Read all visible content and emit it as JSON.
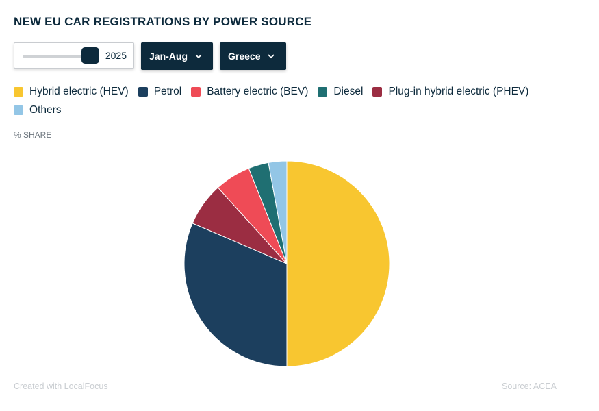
{
  "header": {
    "title": "NEW EU CAR REGISTRATIONS BY POWER SOURCE"
  },
  "controls": {
    "year": "2025",
    "year_slider_fraction": 1.0,
    "period": "Jan-Aug",
    "country": "Greece"
  },
  "legend": [
    {
      "label": "Hybrid electric (HEV)",
      "color": "#f8c630"
    },
    {
      "label": "Petrol",
      "color": "#1c3f5e"
    },
    {
      "label": "Battery electric (BEV)",
      "color": "#ef4b56"
    },
    {
      "label": "Diesel",
      "color": "#1f6f72"
    },
    {
      "label": "Plug-in hybrid electric (PHEV)",
      "color": "#9b2d42"
    },
    {
      "label": "Others",
      "color": "#93c6e6"
    }
  ],
  "axis_label": "% SHARE",
  "chart_data": {
    "type": "pie",
    "title": "NEW EU CAR REGISTRATIONS BY POWER SOURCE",
    "unit": "% SHARE",
    "slices": [
      {
        "label": "Hybrid electric (HEV)",
        "value": 50.4,
        "color": "#f8c630"
      },
      {
        "label": "Petrol",
        "value": 31.7,
        "color": "#1c3f5e"
      },
      {
        "label": "Plug-in hybrid electric (PHEV)",
        "value": 6.9,
        "color": "#9b2d42"
      },
      {
        "label": "Battery electric (BEV)",
        "value": 5.7,
        "color": "#ef4b56"
      },
      {
        "label": "Diesel",
        "value": 3.2,
        "color": "#1f6f72"
      },
      {
        "label": "Others",
        "value": 2.9,
        "color": "#93c6e6"
      }
    ]
  },
  "footer": {
    "credit": "Created with LocalFocus",
    "source": "Source:  ACEA"
  }
}
